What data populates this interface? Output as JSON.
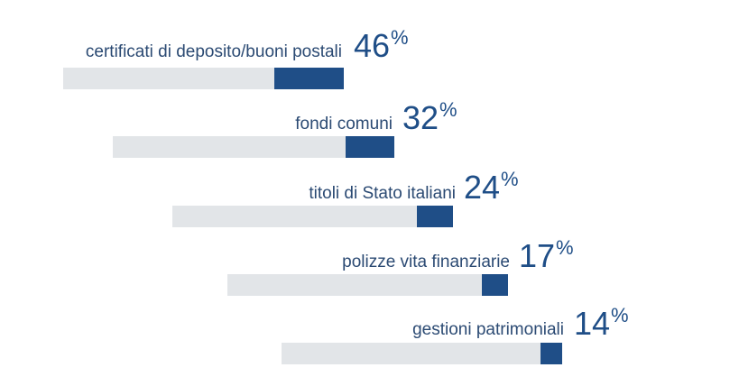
{
  "chart_data": {
    "type": "bar",
    "orientation": "horizontal",
    "categories": [
      "certificati di deposito/buoni postali",
      "fondi comuni",
      "titoli di Stato italiani",
      "polizze vita finanziarie",
      "gestioni patrimoniali"
    ],
    "values": [
      46,
      32,
      24,
      17,
      14
    ],
    "value_labels": [
      "46",
      "32",
      "24",
      "17",
      "14"
    ],
    "unit": "%",
    "colors": {
      "fill": "#1f4e87",
      "track": "#e2e5e8",
      "label": "#2b4a73"
    }
  }
}
